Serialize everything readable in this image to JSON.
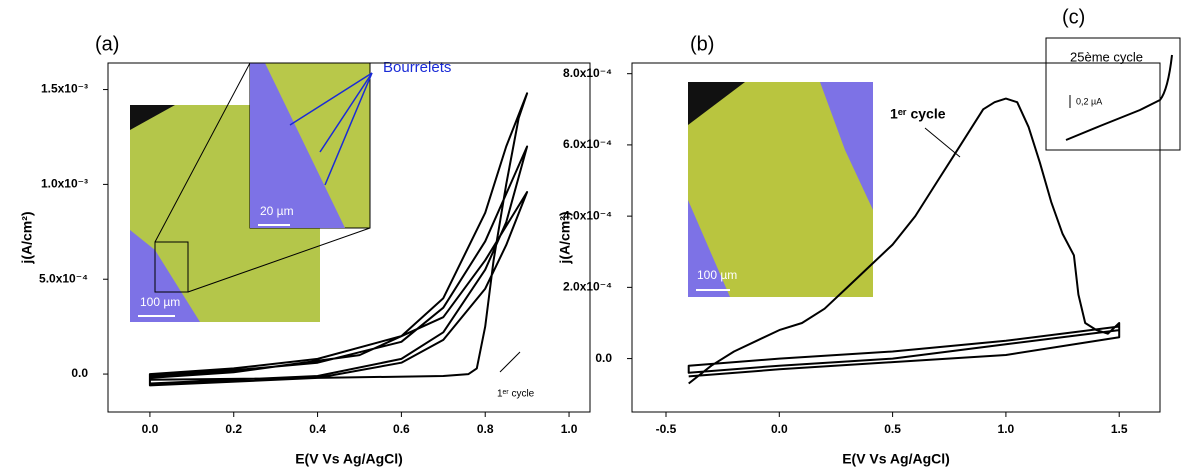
{
  "chart_data": [
    {
      "type": "line",
      "panel": "(a)",
      "x_label": "E(V Vs Ag/AgCl)",
      "y_label": "j(A/cm²)",
      "xlim": [
        -0.1,
        1.05
      ],
      "ylim": [
        -0.0002,
        0.00164
      ],
      "xticks": [
        {
          "value": 0,
          "label": "0.0"
        },
        0.2,
        0.4,
        0.6,
        0.8,
        {
          "value": 1,
          "label": "1.0"
        }
      ],
      "yticks": [
        {
          "value": 0,
          "label": "0.0"
        },
        {
          "value": 0.0005,
          "label": "5.0x10⁻⁴"
        },
        {
          "value": 0.001,
          "label": "1.0x10⁻³"
        },
        {
          "value": 0.0015,
          "label": "1.5x10⁻³"
        }
      ],
      "color": "#000000",
      "x": [
        0,
        0.4,
        0.7,
        0.76,
        0.78,
        0.8,
        0.82,
        0.85,
        0.88,
        0.9,
        0.85,
        0.8,
        0.7,
        0.6,
        0.4,
        0.2,
        0,
        0,
        0.4,
        0.6,
        0.7,
        0.8,
        0.85,
        0.9,
        0.85,
        0.8,
        0.7,
        0.6,
        0.4,
        0.2,
        0,
        0,
        0.4,
        0.6,
        0.7,
        0.8,
        0.85,
        0.9,
        0.8,
        0.7,
        0.5,
        0.2,
        0
      ],
      "values": [
        -3e-05,
        -2e-05,
        -1e-05,
        0,
        3e-05,
        0.00025,
        0.0006,
        0.001,
        0.00135,
        0.00148,
        0.0012,
        0.00085,
        0.0004,
        0.0002,
        8e-05,
        3e-05,
        0,
        -5e-05,
        -1e-05,
        8e-05,
        0.00022,
        0.00055,
        0.0008,
        0.0012,
        0.00095,
        0.0007,
        0.00035,
        0.00017,
        6e-05,
        2e-05,
        -1e-05,
        -6e-05,
        -2e-05,
        6e-05,
        0.00018,
        0.00045,
        0.00068,
        0.00096,
        0.0006,
        0.0003,
        0.0001,
        1e-05,
        -2e-05
      ],
      "annotations": [
        "Bourrelets",
        "20 µm",
        "100 µm",
        "1ᵉʳ cycle"
      ]
    },
    {
      "type": "line",
      "panel": "(b)",
      "x_label": "E(V Vs Ag/AgCl)",
      "y_label": "j(A/cm²)",
      "xlim": [
        -0.65,
        1.68
      ],
      "ylim": [
        -0.00015,
        0.00083
      ],
      "xticks": [
        -0.5,
        {
          "value": 0,
          "label": "0.0"
        },
        0.5,
        {
          "value": 1,
          "label": "1.0"
        },
        1.5
      ],
      "yticks": [
        {
          "value": 0,
          "label": "0.0"
        },
        {
          "value": 0.0002,
          "label": "2.0x10⁻⁴"
        },
        {
          "value": 0.0004,
          "label": "4.0x10⁻⁴"
        },
        {
          "value": 0.0006,
          "label": "6.0x10⁻⁴"
        },
        {
          "value": 0.0008,
          "label": "8.0x10⁻⁴"
        }
      ],
      "color": "#000000",
      "x": [
        -0.4,
        -0.3,
        -0.2,
        -0.1,
        0,
        0.1,
        0.2,
        0.3,
        0.4,
        0.5,
        0.6,
        0.7,
        0.8,
        0.9,
        0.95,
        1,
        1.05,
        1.1,
        1.15,
        1.2,
        1.25,
        1.3,
        1.32,
        1.35,
        1.4,
        1.45,
        1.5,
        1.5,
        1,
        0.5,
        0,
        -0.4,
        -0.4,
        0,
        0.5,
        1,
        1.5,
        1.5,
        1,
        0.5,
        0,
        -0.4
      ],
      "values": [
        -7e-05,
        -2e-05,
        2e-05,
        5e-05,
        8e-05,
        0.0001,
        0.00014,
        0.0002,
        0.00026,
        0.00032,
        0.0004,
        0.0005,
        0.0006,
        0.0007,
        0.00072,
        0.00073,
        0.00072,
        0.00065,
        0.00055,
        0.00044,
        0.00035,
        0.00029,
        0.00018,
        0.0001,
        8e-05,
        7e-05,
        0.0001,
        8e-05,
        4e-05,
        0,
        -2e-05,
        -4e-05,
        -2e-05,
        0,
        2e-05,
        5e-05,
        9e-05,
        6e-05,
        1e-05,
        -1e-05,
        -3e-05,
        -5e-05
      ],
      "annotations": [
        "1ᵉʳ cycle",
        "100 µm",
        "(c)",
        "25ème cycle",
        "0,2 µA"
      ]
    }
  ]
}
